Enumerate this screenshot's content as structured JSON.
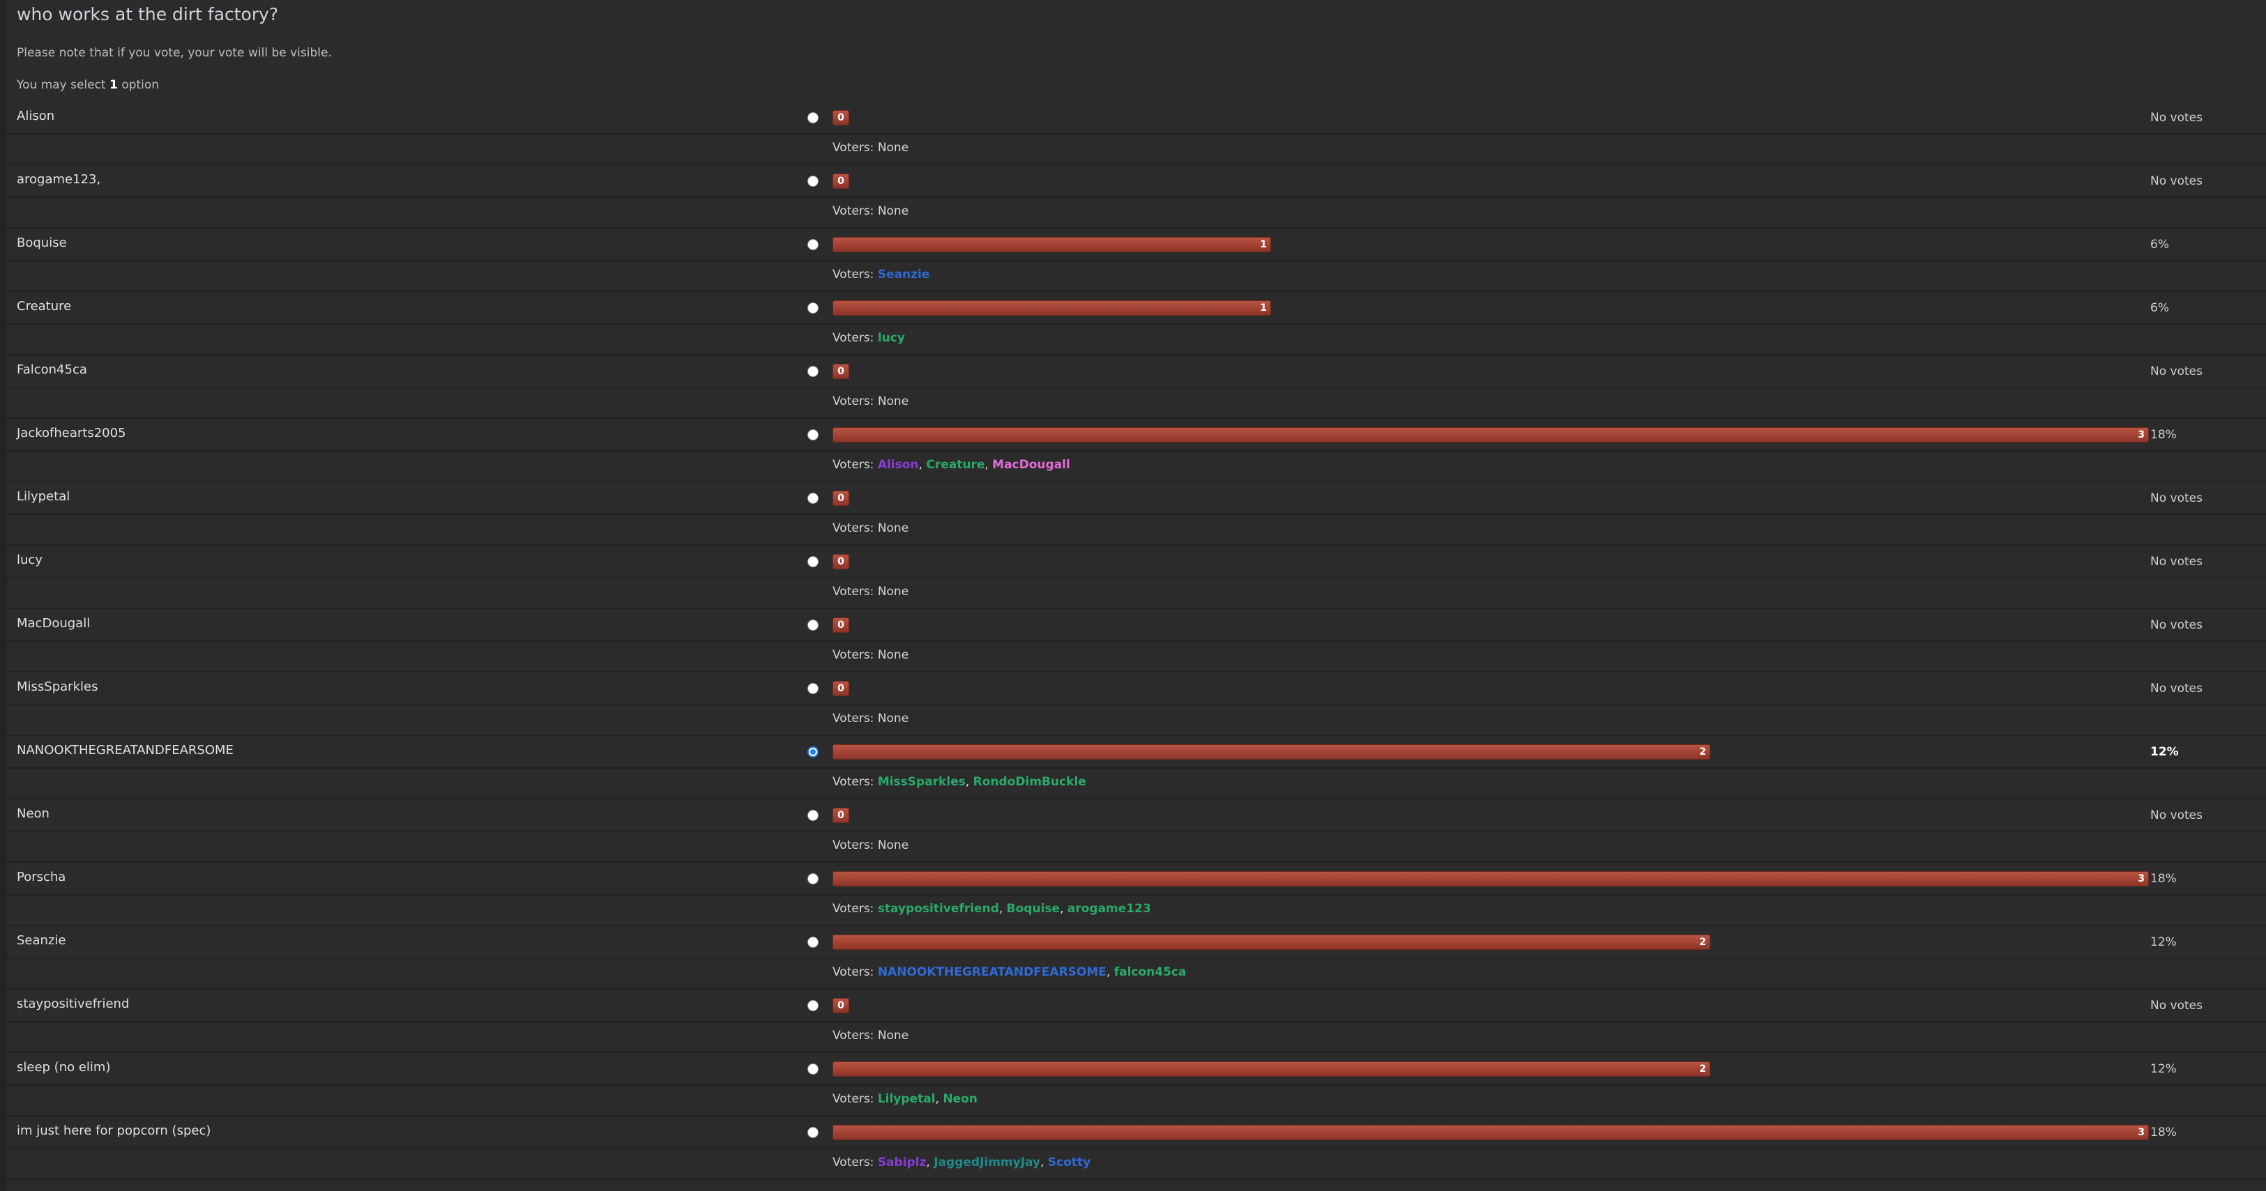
{
  "poll": {
    "title": "who works at the dirt factory?",
    "notice": "Please note that if you vote, your vote will be visible.",
    "select_prefix": "You may select",
    "select_count": "1",
    "select_suffix": "option"
  },
  "labels": {
    "voters_prefix": "Voters:",
    "none": "None",
    "no_votes": "No votes"
  },
  "colors": {
    "bar": "#a84534",
    "blue": "#2f6bd8",
    "green": "#2aaa6a",
    "purple": "#8a3bd9",
    "pink": "#e06bd6",
    "teal": "#1f8a8a",
    "selected_radio": "#2d7be5"
  },
  "options": [
    {
      "label": "Alison",
      "votes": 0,
      "percent": "No votes",
      "checked": false,
      "voters": []
    },
    {
      "label": "arogame123,",
      "votes": 0,
      "percent": "No votes",
      "checked": false,
      "voters": []
    },
    {
      "label": "Boquise",
      "votes": 1,
      "percent": "6%",
      "checked": false,
      "voters": [
        {
          "name": "Seanzie",
          "color": "#2f6bd8"
        }
      ]
    },
    {
      "label": "Creature",
      "votes": 1,
      "percent": "6%",
      "checked": false,
      "voters": [
        {
          "name": "lucy",
          "color": "#2aaa6a"
        }
      ]
    },
    {
      "label": "Falcon45ca",
      "votes": 0,
      "percent": "No votes",
      "checked": false,
      "voters": []
    },
    {
      "label": "Jackofhearts2005",
      "votes": 3,
      "percent": "18%",
      "checked": false,
      "voters": [
        {
          "name": "Alison",
          "color": "#8a3bd9"
        },
        {
          "name": "Creature",
          "color": "#2aaa6a"
        },
        {
          "name": "MacDougall",
          "color": "#e06bd6"
        }
      ]
    },
    {
      "label": "Lilypetal",
      "votes": 0,
      "percent": "No votes",
      "checked": false,
      "voters": []
    },
    {
      "label": "lucy",
      "votes": 0,
      "percent": "No votes",
      "checked": false,
      "voters": []
    },
    {
      "label": "MacDougall",
      "votes": 0,
      "percent": "No votes",
      "checked": false,
      "voters": []
    },
    {
      "label": "MissSparkles",
      "votes": 0,
      "percent": "No votes",
      "checked": false,
      "voters": []
    },
    {
      "label": "NANOOKTHEGREATANDFEARSOME",
      "votes": 2,
      "percent": "12%",
      "checked": true,
      "voters": [
        {
          "name": "MissSparkles",
          "color": "#2aaa6a"
        },
        {
          "name": "RondoDimBuckle",
          "color": "#2aaa6a"
        }
      ]
    },
    {
      "label": "Neon",
      "votes": 0,
      "percent": "No votes",
      "checked": false,
      "voters": []
    },
    {
      "label": "Porscha",
      "votes": 3,
      "percent": "18%",
      "checked": false,
      "voters": [
        {
          "name": "staypositivefriend",
          "color": "#2aaa6a"
        },
        {
          "name": "Boquise",
          "color": "#2aaa6a"
        },
        {
          "name": "arogame123",
          "color": "#2aaa6a"
        }
      ]
    },
    {
      "label": "Seanzie",
      "votes": 2,
      "percent": "12%",
      "checked": false,
      "voters": [
        {
          "name": "NANOOKTHEGREATANDFEARSOME",
          "color": "#2f6bd8"
        },
        {
          "name": "falcon45ca",
          "color": "#2aaa6a"
        }
      ]
    },
    {
      "label": "staypositivefriend",
      "votes": 0,
      "percent": "No votes",
      "checked": false,
      "voters": []
    },
    {
      "label": "sleep (no elim)",
      "votes": 2,
      "percent": "12%",
      "checked": false,
      "voters": [
        {
          "name": "Lilypetal",
          "color": "#2aaa6a"
        },
        {
          "name": "Neon",
          "color": "#2aaa6a"
        }
      ]
    },
    {
      "label": "im just here for popcorn (spec)",
      "votes": 3,
      "percent": "18%",
      "checked": false,
      "voters": [
        {
          "name": "Sabiplz",
          "color": "#8a3bd9"
        },
        {
          "name": "JaggedJimmyJay",
          "color": "#1f8a8a"
        },
        {
          "name": "Scotty",
          "color": "#2f6bd8"
        }
      ]
    }
  ]
}
